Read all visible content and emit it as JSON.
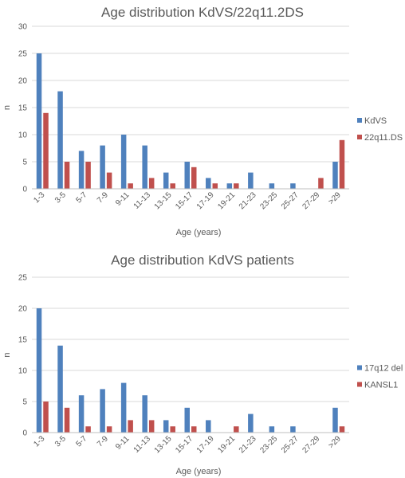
{
  "chart_data": [
    {
      "type": "bar",
      "title": "Age distribution KdVS/22q11.2DS",
      "xlabel": "Age (years)",
      "ylabel": "n",
      "ylim": [
        0,
        30
      ],
      "yticks": [
        0,
        5,
        10,
        15,
        20,
        25,
        30
      ],
      "grid": true,
      "legend_position": "right",
      "categories": [
        "1-3",
        "3-5",
        "5-7",
        "7-9",
        "9-11",
        "11-13",
        "13-15",
        "15-17",
        "17-19",
        "19-21",
        "21-23",
        "23-25",
        "25-27",
        "27-29",
        ">29"
      ],
      "series": [
        {
          "name": "KdVS",
          "color": "#4f81bd",
          "values": [
            25,
            18,
            7,
            8,
            10,
            8,
            3,
            5,
            2,
            1,
            3,
            1,
            1,
            0,
            5
          ]
        },
        {
          "name": "22q11.DS",
          "color": "#c0504d",
          "values": [
            14,
            5,
            5,
            3,
            1,
            2,
            1,
            4,
            1,
            1,
            0,
            0,
            0,
            2,
            9
          ]
        }
      ]
    },
    {
      "type": "bar",
      "title": "Age distribution KdVS patients",
      "xlabel": "Age (years)",
      "ylabel": "n",
      "ylim": [
        0,
        25
      ],
      "yticks": [
        0,
        5,
        10,
        15,
        20,
        25
      ],
      "grid": true,
      "legend_position": "right",
      "categories": [
        "1-3",
        "3-5",
        "5-7",
        "7-9",
        "9-11",
        "11-13",
        "13-15",
        "15-17",
        "17-19",
        "19-21",
        "21-23",
        "23-25",
        "25-27",
        "27-29",
        ">29"
      ],
      "series": [
        {
          "name": "17q12 del",
          "color": "#4f81bd",
          "values": [
            20,
            14,
            6,
            7,
            8,
            6,
            2,
            4,
            2,
            0,
            3,
            1,
            1,
            0,
            4
          ]
        },
        {
          "name": "KANSL1",
          "color": "#c0504d",
          "values": [
            5,
            4,
            1,
            1,
            2,
            2,
            1,
            1,
            0,
            1,
            0,
            0,
            0,
            0,
            1
          ]
        }
      ]
    }
  ]
}
